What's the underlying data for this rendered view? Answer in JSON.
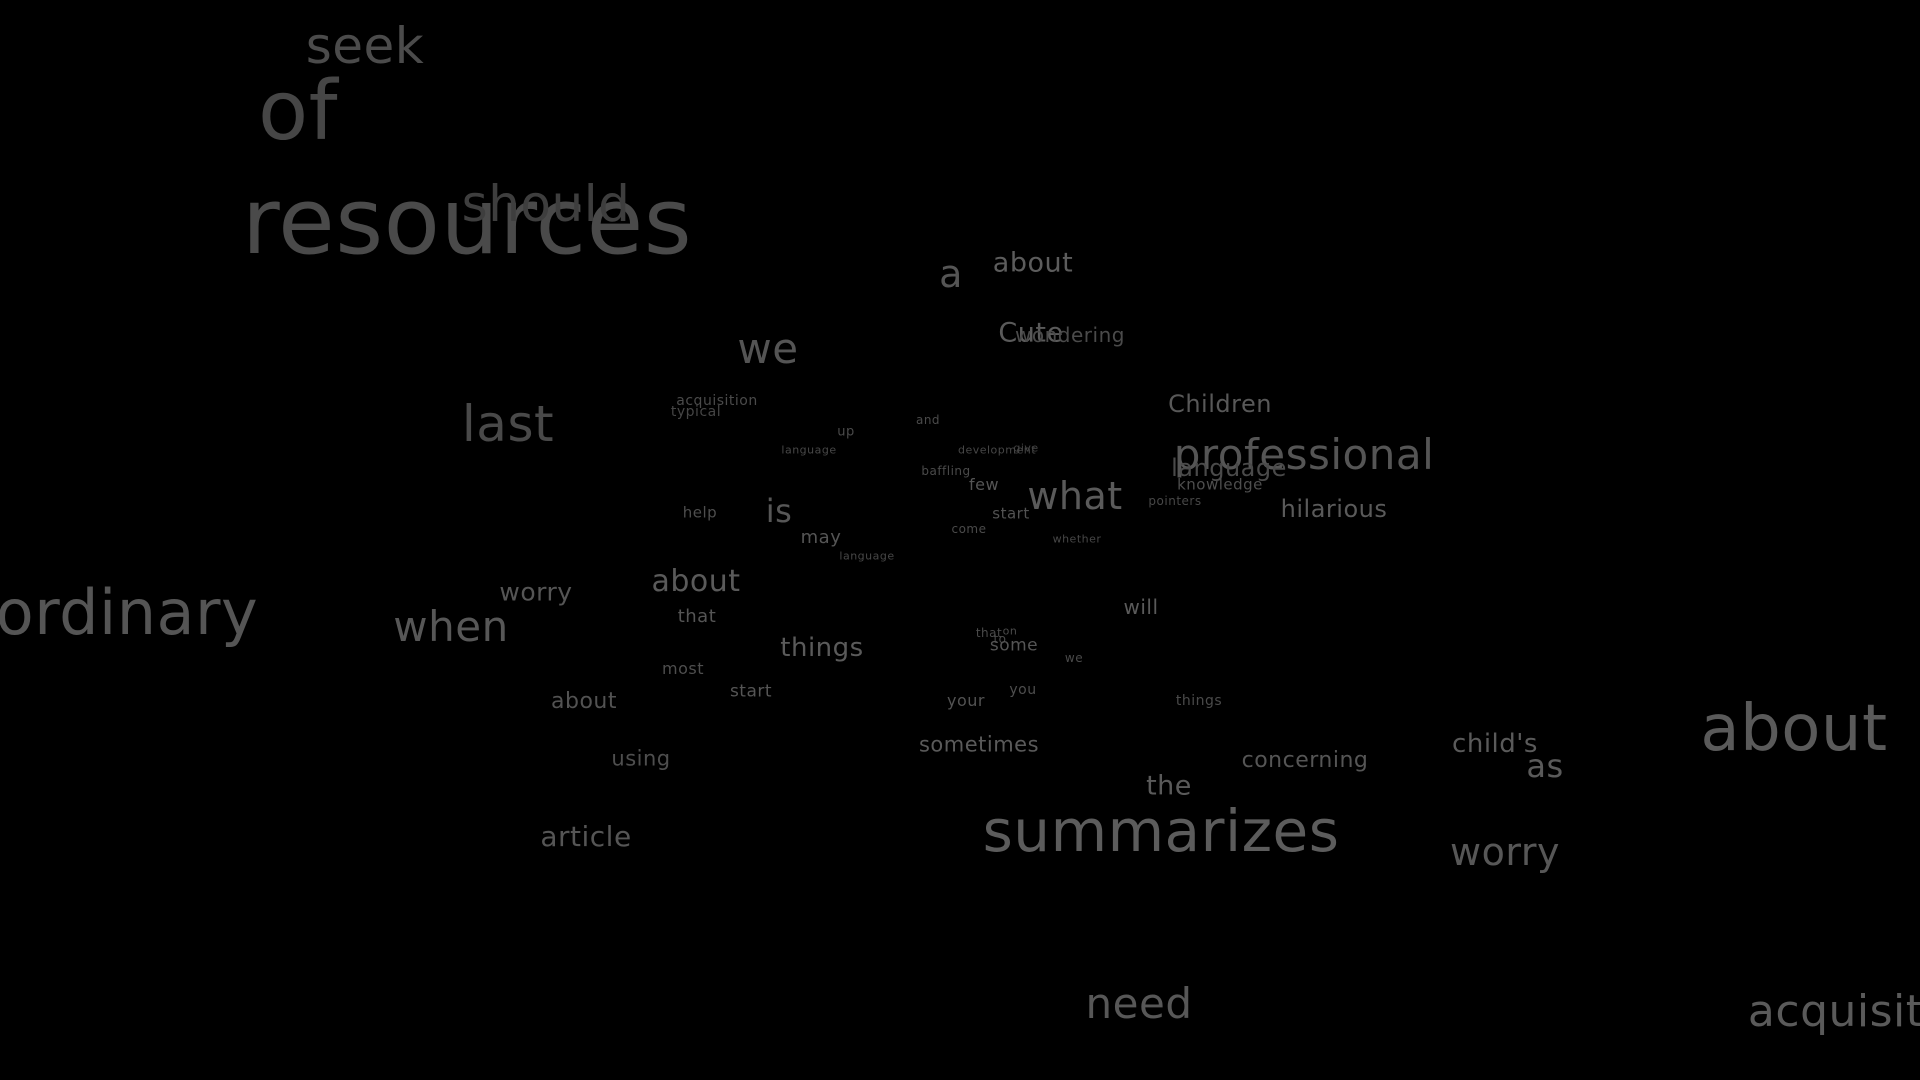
{
  "background": "#000000",
  "words": [
    {
      "text": "seek",
      "shade": "#4b4b4b"
    },
    {
      "text": "of",
      "shade": "#464646"
    },
    {
      "text": "resources",
      "shade": "#4a4a4a"
    },
    {
      "text": "should",
      "shade": "#3e3e3e"
    },
    {
      "text": "a",
      "shade": "#555555"
    },
    {
      "text": "about",
      "shade": "#5c5c5c"
    },
    {
      "text": "Cute",
      "shade": "#5a5a5a"
    },
    {
      "text": "wondering",
      "shade": "#4a4a4a"
    },
    {
      "text": "we",
      "shade": "#545454"
    },
    {
      "text": "last",
      "shade": "#494949"
    },
    {
      "text": "acquisition",
      "shade": "#4a4a4a"
    },
    {
      "text": "typical",
      "shade": "#454545"
    },
    {
      "text": "up",
      "shade": "#4a4a4a"
    },
    {
      "text": "and",
      "shade": "#4a4a4a"
    },
    {
      "text": "language",
      "shade": "#474747"
    },
    {
      "text": "development",
      "shade": "#474747"
    },
    {
      "text": "give",
      "shade": "#444444"
    },
    {
      "text": "baffling",
      "shade": "#4a4a4a"
    },
    {
      "text": "few",
      "shade": "#555555"
    },
    {
      "text": "what",
      "shade": "#5a5a5a"
    },
    {
      "text": "Children",
      "shade": "#585858"
    },
    {
      "text": "professional",
      "shade": "#555555"
    },
    {
      "text": "language",
      "shade": "#4a4a4a"
    },
    {
      "text": "knowledge",
      "shade": "#4e4e4e"
    },
    {
      "text": "pointers",
      "shade": "#474747"
    },
    {
      "text": "hilarious",
      "shade": "#5a5a5a"
    },
    {
      "text": "help",
      "shade": "#4e4e4e"
    },
    {
      "text": "is",
      "shade": "#575757"
    },
    {
      "text": "may",
      "shade": "#555555"
    },
    {
      "text": "start",
      "shade": "#525252"
    },
    {
      "text": "come",
      "shade": "#4a4a4a"
    },
    {
      "text": "whether",
      "shade": "#474747"
    },
    {
      "text": "language",
      "shade": "#474747"
    },
    {
      "text": "ordinary",
      "shade": "#555555"
    },
    {
      "text": "worry",
      "shade": "#555555"
    },
    {
      "text": "about",
      "shade": "#5a5a5a"
    },
    {
      "text": "when",
      "shade": "#575757"
    },
    {
      "text": "that",
      "shade": "#555555"
    },
    {
      "text": "will",
      "shade": "#5a5a5a"
    },
    {
      "text": "things",
      "shade": "#5a5a5a"
    },
    {
      "text": "that",
      "shade": "#4a4a4a"
    },
    {
      "text": "on",
      "shade": "#4a4a4a"
    },
    {
      "text": "to",
      "shade": "#4a4a4a"
    },
    {
      "text": "some",
      "shade": "#555555"
    },
    {
      "text": "we",
      "shade": "#4a4a4a"
    },
    {
      "text": "most",
      "shade": "#4e4e4e"
    },
    {
      "text": "about",
      "shade": "#525252"
    },
    {
      "text": "start",
      "shade": "#555555"
    },
    {
      "text": "your",
      "shade": "#525252"
    },
    {
      "text": "you",
      "shade": "#4e4e4e"
    },
    {
      "text": "things",
      "shade": "#4a4a4a"
    },
    {
      "text": "about",
      "shade": "#5a5a5a"
    },
    {
      "text": "using",
      "shade": "#4e4e4e"
    },
    {
      "text": "sometimes",
      "shade": "#5a5a5a"
    },
    {
      "text": "concerning",
      "shade": "#555555"
    },
    {
      "text": "child's",
      "shade": "#5a5a5a"
    },
    {
      "text": "as",
      "shade": "#5a5a5a"
    },
    {
      "text": "the",
      "shade": "#5a5a5a"
    },
    {
      "text": "article",
      "shade": "#555555"
    },
    {
      "text": "summarizes",
      "shade": "#5c5c5c"
    },
    {
      "text": "worry",
      "shade": "#575757"
    },
    {
      "text": "need",
      "shade": "#575757"
    },
    {
      "text": "acquisition",
      "shade": "#5a5a5a"
    }
  ]
}
